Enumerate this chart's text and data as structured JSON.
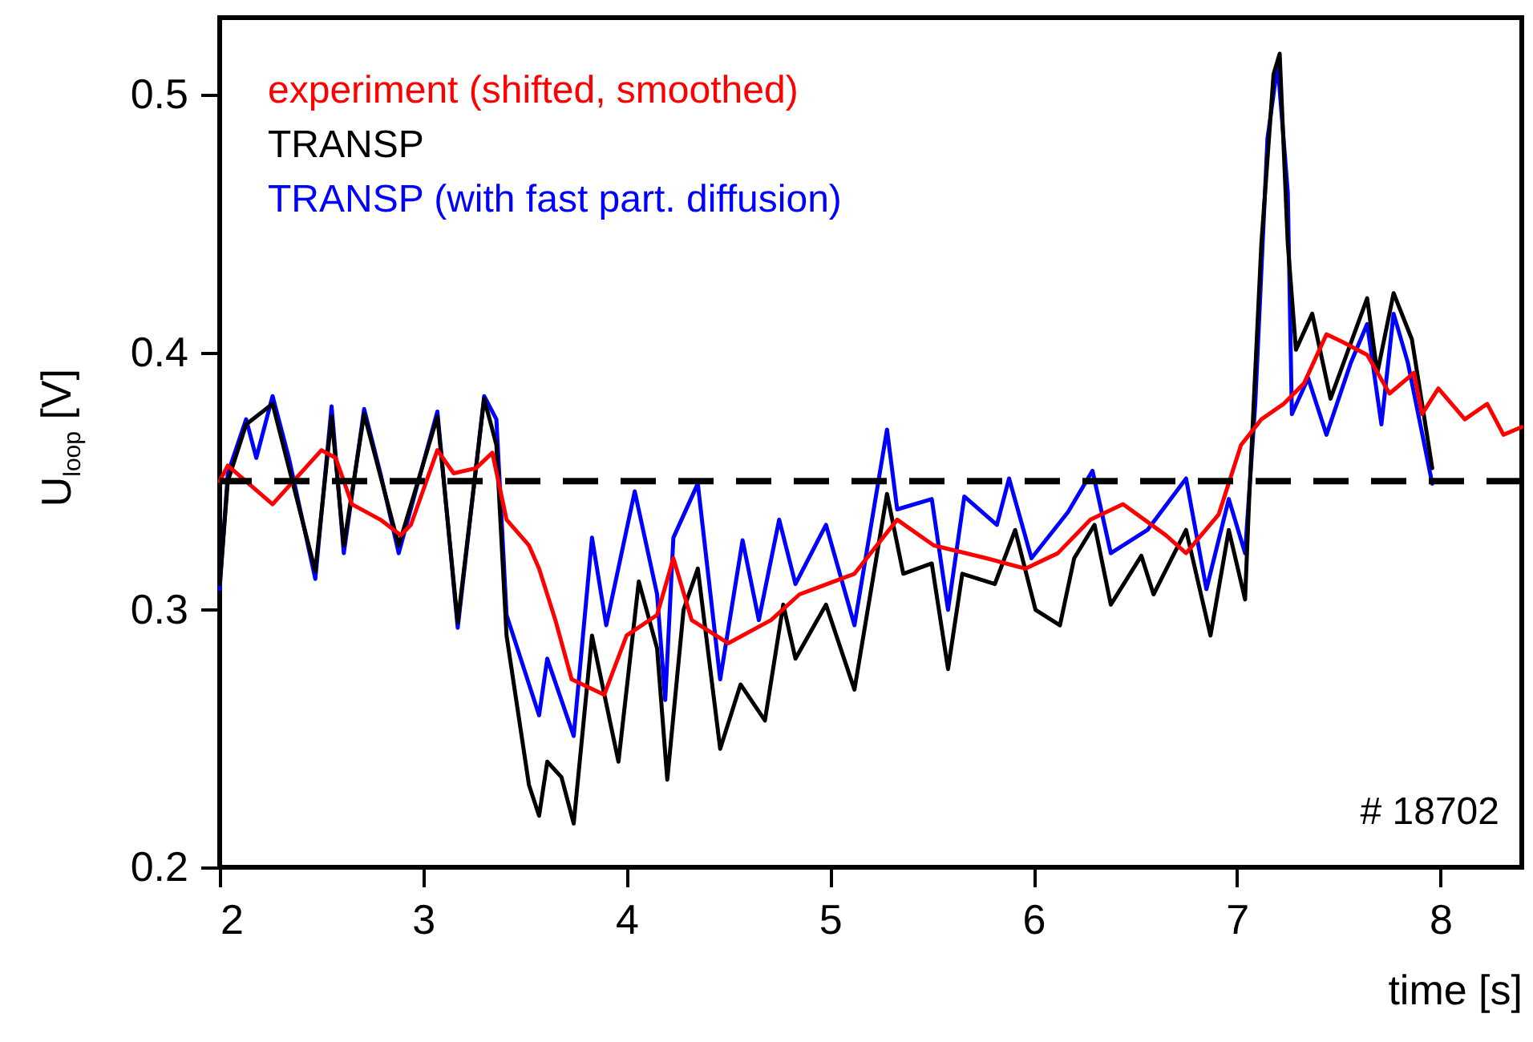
{
  "chart_data": {
    "type": "line",
    "xlabel": "time [s]",
    "ylabel": "U$_{loop}$ [V]",
    "xlim": [
      2,
      8.4
    ],
    "xticks": [
      2,
      3,
      4,
      5,
      6,
      7,
      8
    ],
    "ylim": [
      0.2,
      0.53
    ],
    "yticks": [
      0.2,
      0.3,
      0.4,
      0.5
    ],
    "grid": false,
    "line_style": "solid",
    "marker": "none",
    "ref_lines": [
      {
        "axis": "y",
        "value": 0.35,
        "color": "#000000",
        "line_style": "dashed"
      }
    ],
    "annotations": [
      "# 18702"
    ],
    "series": [
      {
        "name": "experiment (shifted, smoothed)",
        "color": "#ff0000",
        "x": [
          2.0,
          2.04,
          2.26,
          2.5,
          2.57,
          2.65,
          2.79,
          2.89,
          2.94,
          3.07,
          3.15,
          3.26,
          3.34,
          3.41,
          3.52,
          3.57,
          3.65,
          3.73,
          3.89,
          4.0,
          4.15,
          4.23,
          4.32,
          4.5,
          4.71,
          4.85,
          5.12,
          5.33,
          5.51,
          5.77,
          5.96,
          6.12,
          6.28,
          6.44,
          6.65,
          6.75,
          6.91,
          7.02,
          7.12,
          7.23,
          7.33,
          7.44,
          7.52,
          7.64,
          7.75,
          7.87,
          7.91,
          7.99,
          8.12,
          8.23,
          8.31,
          8.4
        ],
        "values": [
          0.35,
          0.356,
          0.341,
          0.362,
          0.359,
          0.341,
          0.335,
          0.329,
          0.333,
          0.362,
          0.353,
          0.355,
          0.361,
          0.335,
          0.325,
          0.316,
          0.296,
          0.273,
          0.267,
          0.29,
          0.298,
          0.32,
          0.296,
          0.287,
          0.296,
          0.306,
          0.314,
          0.335,
          0.325,
          0.32,
          0.316,
          0.322,
          0.335,
          0.341,
          0.329,
          0.322,
          0.337,
          0.364,
          0.374,
          0.38,
          0.388,
          0.407,
          0.404,
          0.399,
          0.384,
          0.392,
          0.376,
          0.386,
          0.374,
          0.38,
          0.368,
          0.371
        ]
      },
      {
        "name": "TRANSP",
        "color": "#000000",
        "x": [
          2.0,
          2.04,
          2.13,
          2.26,
          2.47,
          2.55,
          2.61,
          2.71,
          2.88,
          3.07,
          3.17,
          3.3,
          3.36,
          3.41,
          3.52,
          3.57,
          3.61,
          3.68,
          3.74,
          3.83,
          3.96,
          4.06,
          4.15,
          4.2,
          4.28,
          4.35,
          4.46,
          4.56,
          4.68,
          4.77,
          4.83,
          4.98,
          5.12,
          5.28,
          5.36,
          5.5,
          5.58,
          5.65,
          5.81,
          5.91,
          6.01,
          6.13,
          6.2,
          6.3,
          6.38,
          6.53,
          6.59,
          6.75,
          6.87,
          6.96,
          7.04,
          7.06,
          7.12,
          7.18,
          7.21,
          7.25,
          7.29,
          7.37,
          7.46,
          7.64,
          7.69,
          7.77,
          7.86,
          7.96
        ],
        "values": [
          0.31,
          0.35,
          0.372,
          0.38,
          0.315,
          0.375,
          0.325,
          0.376,
          0.325,
          0.375,
          0.295,
          0.382,
          0.364,
          0.29,
          0.232,
          0.22,
          0.241,
          0.235,
          0.217,
          0.29,
          0.241,
          0.311,
          0.285,
          0.234,
          0.3,
          0.316,
          0.246,
          0.271,
          0.257,
          0.302,
          0.281,
          0.302,
          0.269,
          0.345,
          0.314,
          0.318,
          0.277,
          0.314,
          0.31,
          0.331,
          0.3,
          0.294,
          0.32,
          0.333,
          0.302,
          0.321,
          0.306,
          0.331,
          0.29,
          0.331,
          0.304,
          0.343,
          0.442,
          0.508,
          0.516,
          0.442,
          0.401,
          0.415,
          0.382,
          0.421,
          0.392,
          0.423,
          0.405,
          0.355
        ]
      },
      {
        "name": "TRANSP (with fast part. diffusion)",
        "color": "#0000ff",
        "x": [
          2.0,
          2.04,
          2.13,
          2.18,
          2.26,
          2.34,
          2.47,
          2.55,
          2.61,
          2.71,
          2.79,
          2.88,
          3.07,
          3.17,
          3.3,
          3.36,
          3.41,
          3.57,
          3.61,
          3.74,
          3.83,
          3.9,
          4.04,
          4.15,
          4.19,
          4.23,
          4.35,
          4.46,
          4.57,
          4.65,
          4.75,
          4.83,
          4.98,
          5.12,
          5.28,
          5.33,
          5.5,
          5.58,
          5.66,
          5.82,
          5.88,
          5.99,
          6.17,
          6.29,
          6.38,
          6.56,
          6.75,
          6.85,
          6.96,
          7.04,
          7.09,
          7.15,
          7.2,
          7.25,
          7.27,
          7.35,
          7.44,
          7.56,
          7.64,
          7.71,
          7.77,
          7.84,
          7.96
        ],
        "values": [
          0.308,
          0.353,
          0.374,
          0.359,
          0.383,
          0.359,
          0.312,
          0.379,
          0.322,
          0.378,
          0.353,
          0.322,
          0.377,
          0.293,
          0.383,
          0.374,
          0.298,
          0.259,
          0.281,
          0.251,
          0.328,
          0.294,
          0.346,
          0.306,
          0.265,
          0.328,
          0.349,
          0.273,
          0.327,
          0.296,
          0.335,
          0.31,
          0.333,
          0.294,
          0.37,
          0.339,
          0.343,
          0.3,
          0.344,
          0.333,
          0.351,
          0.32,
          0.338,
          0.354,
          0.322,
          0.331,
          0.351,
          0.308,
          0.343,
          0.322,
          0.38,
          0.483,
          0.512,
          0.462,
          0.376,
          0.39,
          0.368,
          0.396,
          0.411,
          0.372,
          0.415,
          0.396,
          0.349
        ]
      }
    ]
  }
}
